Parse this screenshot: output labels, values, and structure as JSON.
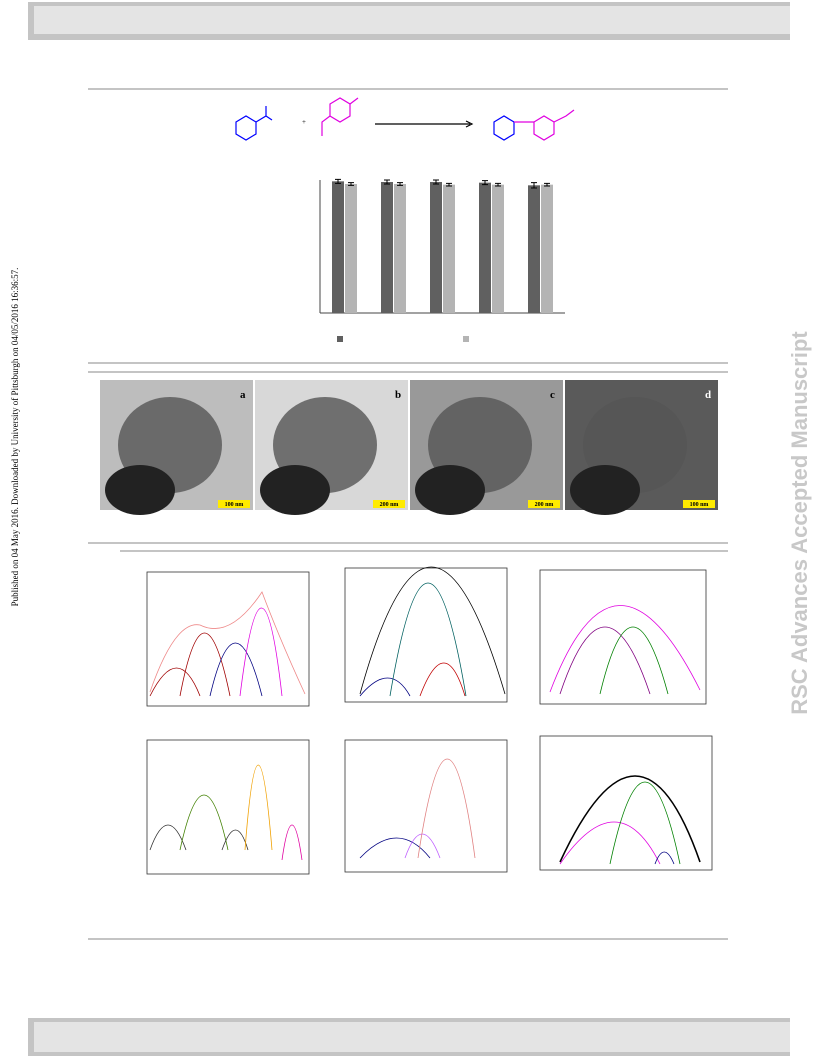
{
  "side_note": "Published on 04 May 2016. Downloaded by University of Pittsburgh on 04/05/2016 16:36:57.",
  "watermark": "RSC Advances Accepted Manuscript",
  "bar_chart": {
    "type": "bar",
    "categories": [
      null,
      null,
      null,
      null,
      null
    ],
    "ylim": [
      0,
      100
    ],
    "series": [
      {
        "color": "#606060",
        "values": [
          99,
          98.5,
          98.5,
          98,
          96
        ],
        "errors": [
          1.5,
          1.5,
          1.5,
          1.5,
          2
        ]
      },
      {
        "color": "#b4b4b4",
        "values": [
          97,
          97,
          96.5,
          96.5,
          96.5
        ],
        "errors": [
          1,
          1,
          1,
          1,
          1
        ]
      }
    ]
  },
  "tem_images": [
    {
      "letter": "a",
      "scale": "100 nm"
    },
    {
      "letter": "b",
      "scale": "200 nm"
    },
    {
      "letter": "c",
      "scale": "200 nm"
    },
    {
      "letter": "d",
      "scale": "100 nm"
    }
  ]
}
